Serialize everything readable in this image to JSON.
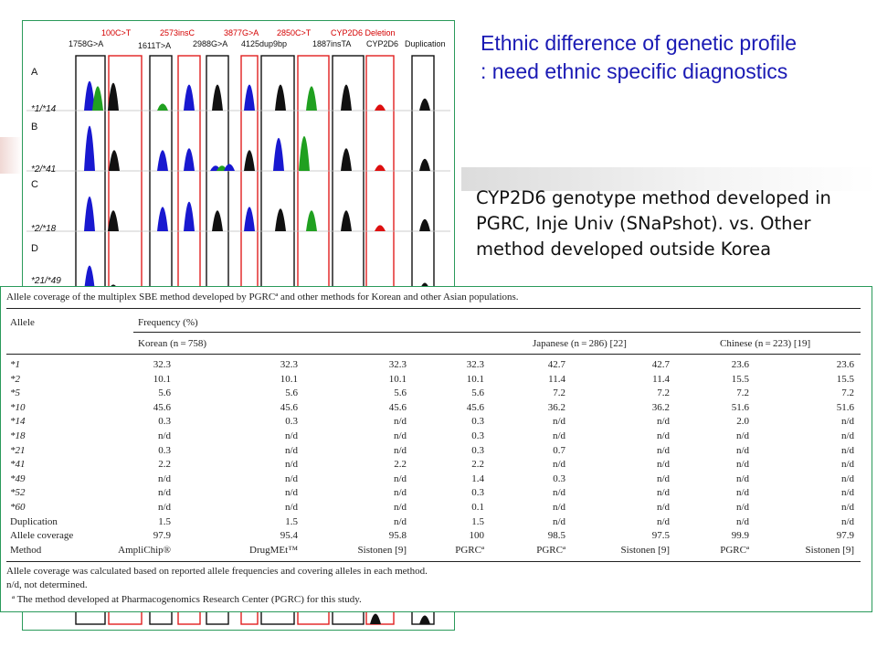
{
  "slide": {
    "title_lines": [
      "Ethnic difference of genetic profile",
      ": need ethnic specific diagnostics"
    ],
    "description": "CYP2D6 genotype method developed in PGRC, Inje Univ (SNaPshot). vs. Other method developed outside Korea"
  },
  "figure": {
    "top_red_labels": [
      "100C>T",
      "2573insC",
      "3877G>A",
      "2850C>T",
      "CYP2D6 Deletion"
    ],
    "top_black_labels": [
      "1758G>A",
      "1611T>A",
      "2988G>A",
      "4125dup9bp",
      "1887insTA",
      "CYP2D6",
      "Duplication"
    ],
    "rows": [
      {
        "label": "A",
        "genotype": "*1/*14"
      },
      {
        "label": "B",
        "genotype": "*2/*41"
      },
      {
        "label": "C",
        "genotype": "*2/*18"
      },
      {
        "label": "D",
        "genotype": "*21/*49"
      }
    ],
    "colors": {
      "blue": "#1818d0",
      "green": "#20a020",
      "black": "#111111",
      "red": "#dd1010",
      "box_red": "#e02020"
    }
  },
  "table": {
    "caption": "Allele coverage of the multiplex SBE method developed by PGRCª and other methods for Korean and other Asian populations.",
    "header_allele": "Allele",
    "header_frequency": "Frequency (%)",
    "groups": [
      "Korean (n = 758)",
      "Japanese (n = 286) [22]",
      "Chinese (n = 223) [19]"
    ],
    "rows": [
      {
        "allele": "*1",
        "values": [
          "32.3",
          "32.3",
          "32.3",
          "32.3",
          "42.7",
          "42.7",
          "23.6",
          "23.6"
        ]
      },
      {
        "allele": "*2",
        "values": [
          "10.1",
          "10.1",
          "10.1",
          "10.1",
          "11.4",
          "11.4",
          "15.5",
          "15.5"
        ]
      },
      {
        "allele": "*5",
        "values": [
          "5.6",
          "5.6",
          "5.6",
          "5.6",
          "7.2",
          "7.2",
          "7.2",
          "7.2"
        ]
      },
      {
        "allele": "*10",
        "values": [
          "45.6",
          "45.6",
          "45.6",
          "45.6",
          "36.2",
          "36.2",
          "51.6",
          "51.6"
        ]
      },
      {
        "allele": "*14",
        "values": [
          "0.3",
          "0.3",
          "n/d",
          "0.3",
          "n/d",
          "n/d",
          "2.0",
          "n/d"
        ]
      },
      {
        "allele": "*18",
        "values": [
          "n/d",
          "n/d",
          "n/d",
          "0.3",
          "n/d",
          "n/d",
          "n/d",
          "n/d"
        ]
      },
      {
        "allele": "*21",
        "values": [
          "0.3",
          "n/d",
          "n/d",
          "0.3",
          "0.7",
          "n/d",
          "n/d",
          "n/d"
        ]
      },
      {
        "allele": "*41",
        "values": [
          "2.2",
          "n/d",
          "2.2",
          "2.2",
          "n/d",
          "n/d",
          "n/d",
          "n/d"
        ]
      },
      {
        "allele": "*49",
        "values": [
          "n/d",
          "n/d",
          "n/d",
          "1.4",
          "0.3",
          "n/d",
          "n/d",
          "n/d"
        ]
      },
      {
        "allele": "*52",
        "values": [
          "n/d",
          "n/d",
          "n/d",
          "0.3",
          "n/d",
          "n/d",
          "n/d",
          "n/d"
        ]
      },
      {
        "allele": "*60",
        "values": [
          "n/d",
          "n/d",
          "n/d",
          "0.1",
          "n/d",
          "n/d",
          "n/d",
          "n/d"
        ]
      },
      {
        "allele": "Duplication",
        "values": [
          "1.5",
          "1.5",
          "n/d",
          "1.5",
          "n/d",
          "n/d",
          "n/d",
          "n/d"
        ]
      },
      {
        "allele": "Allele coverage",
        "values": [
          "97.9",
          "95.4",
          "95.8",
          "100",
          "98.5",
          "97.5",
          "99.9",
          "97.9"
        ]
      },
      {
        "allele": "Method",
        "values": [
          "AmpliChip®",
          "DrugMEt™",
          "Sistonen [9]",
          "PGRCª",
          "PGRCª",
          "Sistonen [9]",
          "PGRCª",
          "Sistonen [9]"
        ]
      }
    ],
    "footnotes": [
      "Allele coverage was calculated based on reported allele frequencies and covering alleles in each method.",
      "n/d, not determined.",
      "ª  The method developed at Pharmacogenomics Research Center (PGRC) for this study."
    ]
  }
}
